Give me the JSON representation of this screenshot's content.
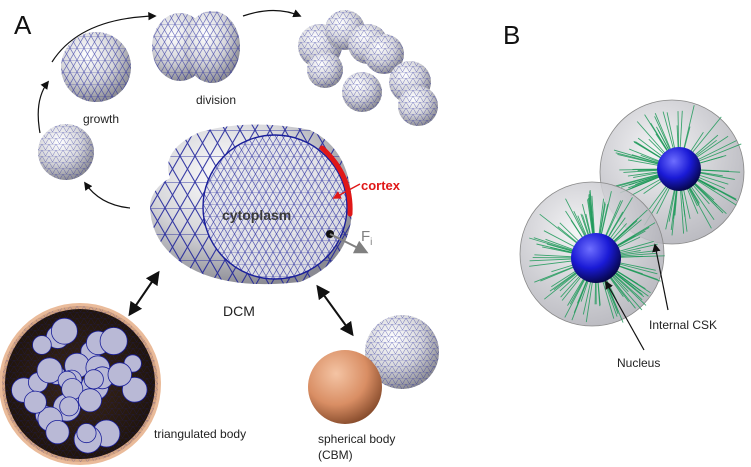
{
  "panels": {
    "a": "A",
    "b": "B"
  },
  "labels": {
    "growth": "growth",
    "division": "division",
    "cytoplasm": "cytoplasm",
    "cortex": "cortex",
    "force_main": "F",
    "force_sub": "i",
    "dcm": "DCM",
    "triangulated": "triangulated body",
    "spherical_line1": "spherical body",
    "spherical_line2": "(CBM)",
    "internal_csk": "Internal CSK",
    "nucleus": "Nucleus"
  },
  "colors": {
    "mesh": "#1a1f9a",
    "cell_fill": "#d9d9dd",
    "cortex": "#e01818",
    "force": "#808080",
    "nucleus": "#1a1ad6",
    "csk": "#1f9a5a",
    "cbm": "#d98e64",
    "triangulated_shell": "#e8b48f"
  }
}
